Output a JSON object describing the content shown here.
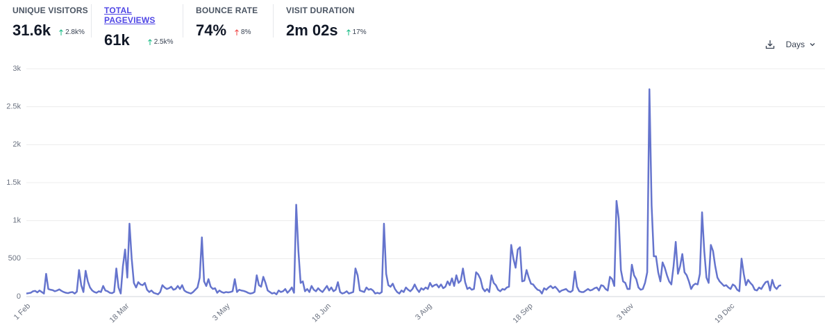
{
  "metrics": [
    {
      "label": "UNIQUE VISITORS",
      "value": "31.6k",
      "change": "2.8k%"
    },
    {
      "label": "TOTAL PAGEVIEWS",
      "value": "61k",
      "change": "2.5k%"
    },
    {
      "label": "BOUNCE RATE",
      "value": "74%",
      "change": "8%"
    },
    {
      "label": "VISIT DURATION",
      "value": "2m 02s",
      "change": "17%"
    }
  ],
  "interval": "Days",
  "chart_data": {
    "type": "line",
    "color": "#6574cd",
    "grid": true,
    "ylim": [
      0,
      3000
    ],
    "yticks": [
      0,
      500,
      {
        "value": 1000,
        "label": "1k"
      },
      {
        "value": 1500,
        "label": "1.5k"
      },
      {
        "value": 2000,
        "label": "2k"
      },
      {
        "value": 2500,
        "label": "2.5k"
      },
      {
        "value": 3000,
        "label": "3k"
      }
    ],
    "categories": [
      "1 Feb",
      null,
      null,
      null,
      null,
      null,
      null,
      null,
      null,
      null,
      null,
      null,
      null,
      null,
      null,
      null,
      null,
      null,
      null,
      null,
      null,
      null,
      null,
      null,
      null,
      null,
      null,
      null,
      null,
      null,
      null,
      null,
      null,
      null,
      null,
      null,
      null,
      null,
      null,
      null,
      null,
      null,
      null,
      null,
      null,
      "18 Mar",
      null,
      null,
      null,
      null,
      null,
      null,
      null,
      null,
      null,
      null,
      null,
      null,
      null,
      null,
      null,
      null,
      null,
      null,
      null,
      null,
      null,
      null,
      null,
      null,
      null,
      null,
      null,
      null,
      null,
      null,
      null,
      null,
      null,
      null,
      null,
      null,
      null,
      null,
      null,
      null,
      null,
      null,
      null,
      null,
      null,
      "3 May",
      null,
      null,
      null,
      null,
      null,
      null,
      null,
      null,
      null,
      null,
      null,
      null,
      null,
      null,
      null,
      null,
      null,
      null,
      null,
      null,
      null,
      null,
      null,
      null,
      null,
      null,
      null,
      null,
      null,
      null,
      null,
      null,
      null,
      null,
      null,
      null,
      null,
      null,
      null,
      null,
      null,
      null,
      null,
      null,
      null,
      "18 Jun",
      null,
      null,
      null,
      null,
      null,
      null,
      null,
      null,
      null,
      null,
      null,
      null,
      null,
      null,
      null,
      null,
      null,
      null,
      null,
      null,
      null,
      null,
      null,
      null,
      null,
      null,
      null,
      null,
      null,
      null,
      null,
      null,
      null,
      null,
      null,
      null,
      null,
      null,
      null,
      null,
      null,
      null,
      null,
      null,
      null,
      "3 Aug",
      null,
      null,
      null,
      null,
      null,
      null,
      null,
      null,
      null,
      null,
      null,
      null,
      null,
      null,
      null,
      null,
      null,
      null,
      null,
      null,
      null,
      null,
      null,
      null,
      null,
      null,
      null,
      null,
      null,
      null,
      null,
      null,
      null,
      null,
      null,
      null,
      null,
      null,
      null,
      null,
      null,
      null,
      null,
      null,
      null,
      "18 Sep",
      null,
      null,
      null,
      null,
      null,
      null,
      null,
      null,
      null,
      null,
      null,
      null,
      null,
      null,
      null,
      null,
      null,
      null,
      null,
      null,
      null,
      null,
      null,
      null,
      null,
      null,
      null,
      null,
      null,
      null,
      null,
      null,
      null,
      null,
      null,
      null,
      null,
      null,
      null,
      null,
      null,
      null,
      null,
      null,
      null,
      "3 Nov",
      null,
      null,
      null,
      null,
      null,
      null,
      null,
      null,
      null,
      null,
      null,
      null,
      null,
      null,
      null,
      null,
      null,
      null,
      null,
      null,
      null,
      null,
      null,
      null,
      null,
      null,
      null,
      null,
      null,
      null,
      null,
      null,
      null,
      null,
      null,
      null,
      null,
      null,
      null,
      null,
      null,
      null,
      null,
      null,
      null,
      "19 Dec",
      null,
      null,
      null,
      null,
      null,
      null,
      null,
      null,
      null,
      null,
      null,
      null,
      null,
      null,
      null,
      null,
      null,
      null,
      null,
      null,
      null,
      null,
      null,
      null,
      null,
      null,
      null,
      null,
      null,
      null,
      null,
      null,
      null,
      null,
      null,
      null,
      null,
      null,
      null,
      null,
      null,
      null,
      null
    ],
    "values": [
      40,
      45,
      50,
      70,
      75,
      55,
      80,
      60,
      40,
      300,
      100,
      90,
      85,
      70,
      80,
      95,
      75,
      60,
      50,
      45,
      55,
      60,
      40,
      65,
      350,
      150,
      60,
      340,
      200,
      120,
      80,
      60,
      50,
      70,
      60,
      140,
      80,
      70,
      50,
      45,
      60,
      370,
      120,
      40,
      400,
      620,
      250,
      960,
      500,
      180,
      120,
      190,
      160,
      150,
      180,
      90,
      60,
      80,
      50,
      40,
      30,
      60,
      150,
      120,
      100,
      110,
      130,
      90,
      100,
      140,
      100,
      150,
      80,
      60,
      50,
      40,
      60,
      90,
      120,
      250,
      780,
      200,
      140,
      230,
      130,
      100,
      110,
      50,
      80,
      60,
      50,
      60,
      55,
      60,
      70,
      230,
      60,
      90,
      80,
      75,
      65,
      50,
      40,
      45,
      60,
      280,
      150,
      130,
      260,
      180,
      80,
      60,
      40,
      50,
      30,
      80,
      60,
      70,
      100,
      50,
      80,
      120,
      50,
      1210,
      600,
      180,
      200,
      70,
      100,
      60,
      140,
      90,
      70,
      110,
      80,
      60,
      100,
      140,
      80,
      120,
      70,
      90,
      190,
      60,
      40,
      50,
      70,
      40,
      50,
      60,
      370,
      280,
      80,
      70,
      60,
      120,
      90,
      100,
      80,
      40,
      50,
      40,
      60,
      960,
      300,
      150,
      130,
      170,
      100,
      60,
      40,
      80,
      60,
      120,
      90,
      70,
      100,
      160,
      100,
      60,
      110,
      90,
      120,
      100,
      180,
      130,
      150,
      160,
      120,
      160,
      110,
      130,
      200,
      150,
      240,
      140,
      280,
      180,
      210,
      370,
      190,
      100,
      120,
      90,
      100,
      320,
      290,
      230,
      110,
      70,
      100,
      60,
      280,
      180,
      150,
      90,
      70,
      100,
      90,
      120,
      130,
      680,
      500,
      380,
      620,
      650,
      200,
      210,
      350,
      250,
      170,
      160,
      120,
      90,
      80,
      40,
      110,
      90,
      120,
      140,
      110,
      130,
      100,
      60,
      80,
      90,
      100,
      70,
      60,
      80,
      330,
      130,
      70,
      60,
      60,
      80,
      100,
      80,
      90,
      110,
      120,
      80,
      150,
      140,
      100,
      80,
      260,
      230,
      140,
      1260,
      1030,
      350,
      200,
      180,
      100,
      100,
      420,
      280,
      230,
      120,
      90,
      100,
      180,
      320,
      2730,
      1200,
      530,
      530,
      320,
      200,
      450,
      380,
      280,
      200,
      160,
      400,
      720,
      300,
      400,
      560,
      320,
      280,
      200,
      100,
      150,
      170,
      160,
      300,
      1110,
      600,
      250,
      180,
      680,
      600,
      400,
      250,
      200,
      170,
      140,
      150,
      120,
      100,
      160,
      140,
      90,
      70,
      500,
      300,
      150,
      220,
      180,
      150,
      90,
      80,
      120,
      100,
      150,
      190,
      200,
      80,
      220,
      130,
      100,
      140,
      150,
      null,
      null,
      null,
      null,
      null,
      null,
      null,
      null,
      null,
      null,
      null,
      null,
      null,
      null,
      null,
      null,
      null,
      null,
      null,
      null
    ]
  }
}
